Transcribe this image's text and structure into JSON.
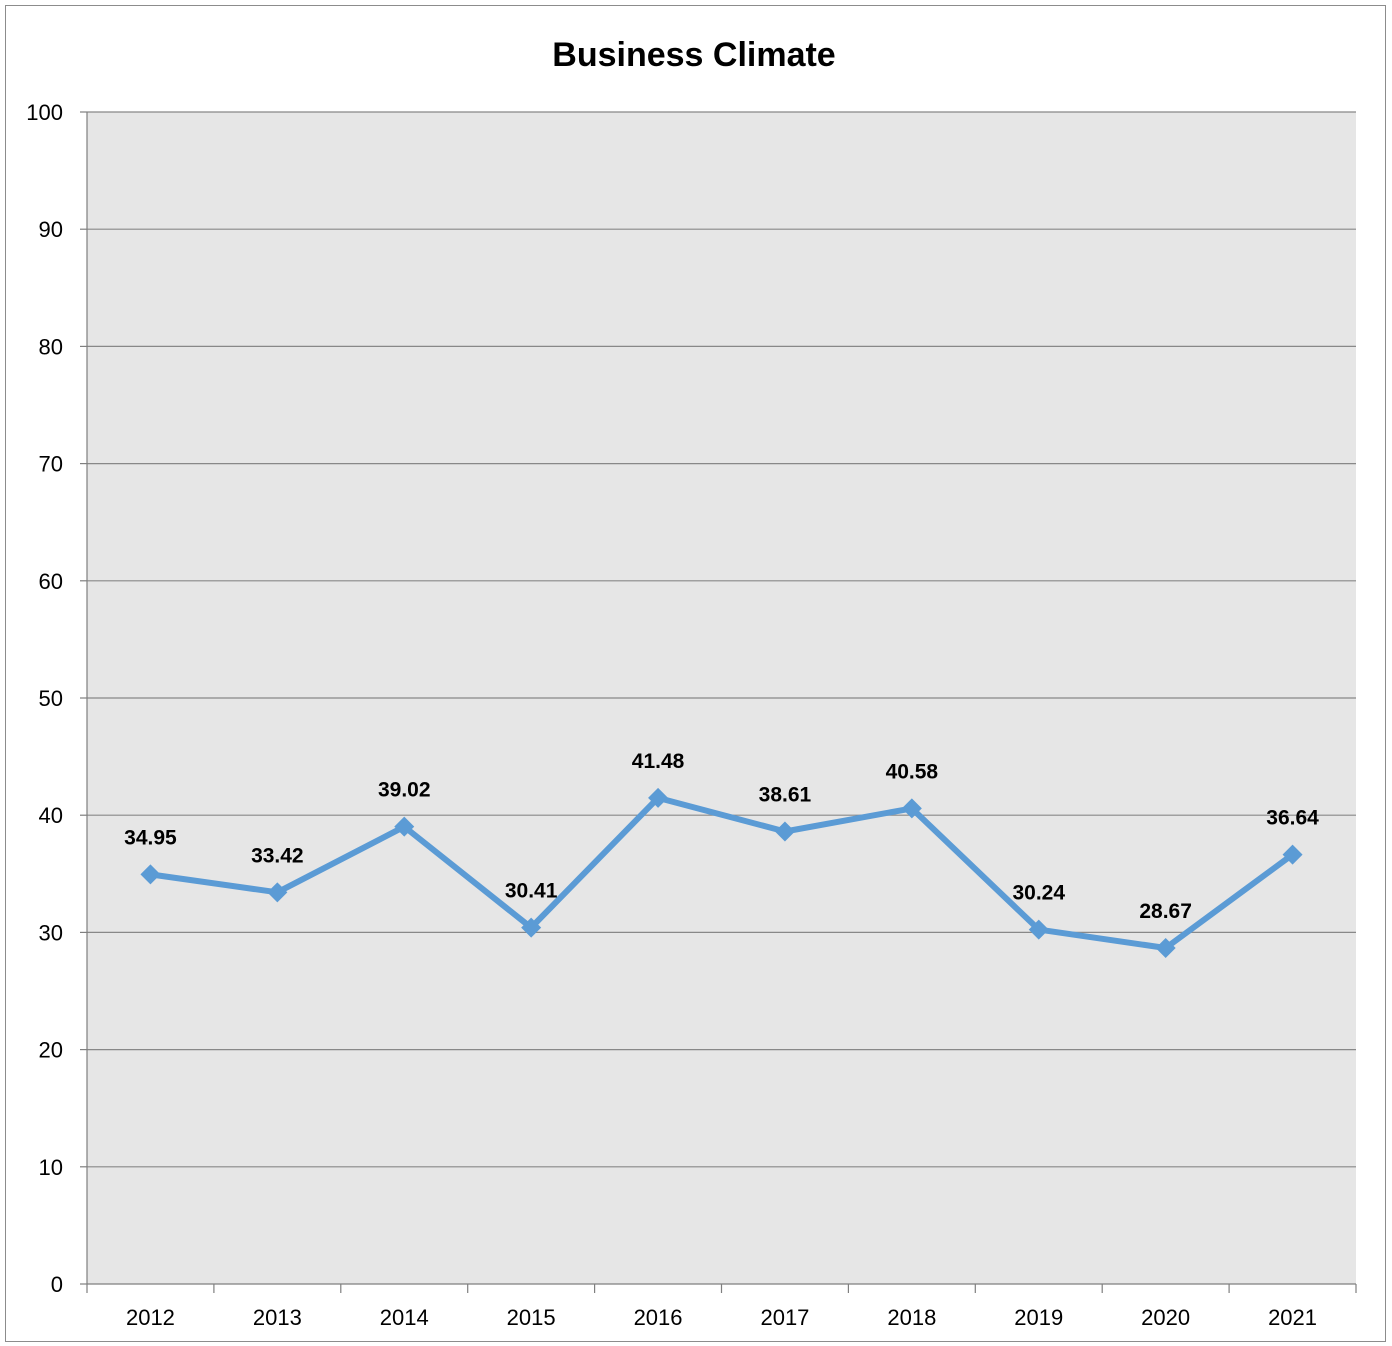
{
  "chart_data": {
    "type": "line",
    "title": "Business Climate",
    "xlabel": "",
    "ylabel": "",
    "categories": [
      "2012",
      "2013",
      "2014",
      "2015",
      "2016",
      "2017",
      "2018",
      "2019",
      "2020",
      "2021"
    ],
    "series": [
      {
        "values": [
          34.95,
          33.42,
          39.02,
          30.41,
          41.48,
          38.61,
          40.58,
          30.24,
          28.67,
          36.64
        ],
        "data_labels": [
          "34.95",
          "33.42",
          "39.02",
          "30.41",
          "41.48",
          "38.61",
          "40.58",
          "30.24",
          "28.67",
          "36.64"
        ],
        "color": "#5b9bd5",
        "marker": "diamond"
      }
    ],
    "ylim": [
      0,
      100
    ],
    "yticks": [
      "0",
      "10",
      "20",
      "30",
      "40",
      "50",
      "60",
      "70",
      "80",
      "90",
      "100"
    ],
    "grid": true,
    "legend": "none",
    "plot_background": "#e6e6e6",
    "gridline_color": "#888888"
  }
}
